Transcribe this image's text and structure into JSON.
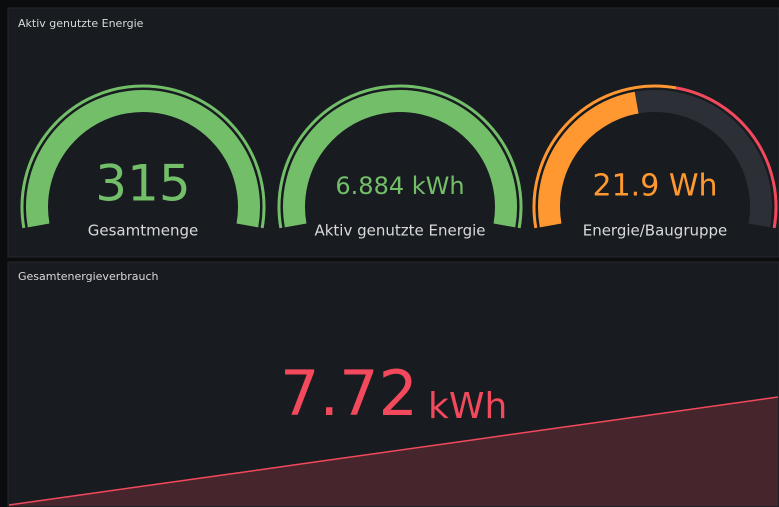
{
  "panels": [
    {
      "title": "Aktiv genutzte Energie",
      "gauges": [
        {
          "value": "315",
          "label": "Gesamtmenge",
          "color": "#73bf69",
          "fill_percent": 100,
          "value_size": 50,
          "thresholds": [
            {
              "from_percent": 0,
              "color": "#73bf69"
            }
          ]
        },
        {
          "value": "6.884 kWh",
          "label": "Aktiv genutzte Energie",
          "color": "#73bf69",
          "fill_percent": 100,
          "value_size": 24,
          "thresholds": [
            {
              "from_percent": 0,
              "color": "#73bf69"
            }
          ]
        },
        {
          "value": "21.9 Wh",
          "label": "Energie/Baugruppe",
          "color": "#ff9830",
          "fill_percent": 45,
          "value_size": 30,
          "thresholds": [
            {
              "from_percent": 0,
              "color": "#ff9830"
            },
            {
              "from_percent": 55,
              "color": "#f2495c"
            }
          ]
        }
      ]
    },
    {
      "title": "Gesamtenergieverbrauch",
      "stat": {
        "value": "7.72",
        "unit": "kWh",
        "color": "#f2495c",
        "sparkline": [
          0,
          20,
          40,
          60,
          80,
          100
        ]
      }
    }
  ]
}
